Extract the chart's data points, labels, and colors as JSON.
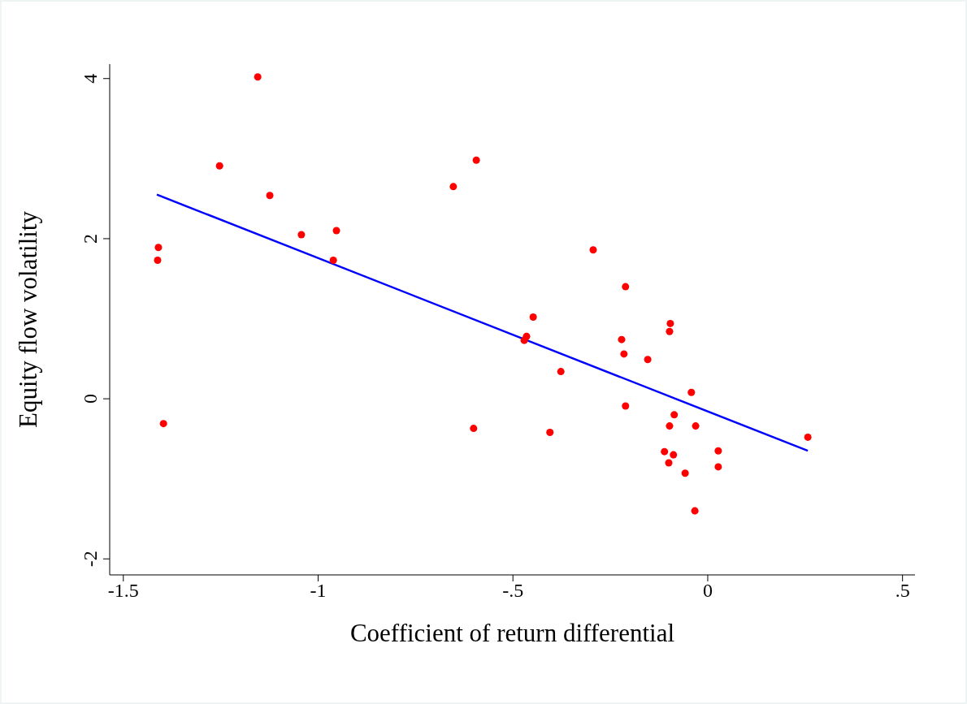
{
  "chart_data": {
    "type": "scatter",
    "xlabel": "Coefficient of return differential",
    "ylabel": "Equity flow volatility",
    "xlim": [
      -1.535,
      0.532
    ],
    "ylim": [
      -2.2,
      4.18
    ],
    "xticks": [
      {
        "value": -1.5,
        "label": "-1.5"
      },
      {
        "value": -1,
        "label": "-1"
      },
      {
        "value": -0.5,
        "label": "-.5"
      },
      {
        "value": 0,
        "label": "0"
      },
      {
        "value": 0.5,
        "label": ".5"
      }
    ],
    "yticks": [
      -2,
      0,
      2,
      4
    ],
    "marker": "circle",
    "series": [
      {
        "color": "#ff0000",
        "x": [
          -1.155,
          -1.253,
          -1.124,
          -1.41,
          -1.412,
          -1.397,
          -1.043,
          -0.953,
          -0.961,
          -0.653,
          -0.594,
          -0.601,
          -0.448,
          -0.465,
          -0.471,
          -0.377,
          -0.405,
          -0.294,
          -0.211,
          -0.221,
          -0.215,
          -0.211,
          -0.154,
          -0.096,
          -0.098,
          -0.042,
          -0.098,
          -0.086,
          -0.031,
          -0.111,
          -0.088,
          -0.1,
          -0.058,
          0.027,
          0.027,
          -0.033,
          0.257
        ],
        "values": [
          4.02,
          2.91,
          2.54,
          1.89,
          1.73,
          -0.31,
          2.05,
          2.1,
          1.73,
          2.65,
          2.98,
          -0.37,
          1.02,
          0.78,
          0.73,
          0.34,
          -0.42,
          1.86,
          1.4,
          0.74,
          0.56,
          -0.09,
          0.49,
          0.94,
          0.84,
          0.08,
          -0.34,
          -0.2,
          -0.34,
          -0.66,
          -0.7,
          -0.8,
          -0.93,
          -0.65,
          -0.85,
          -1.4,
          -0.48
        ]
      },
      {
        "type": "line",
        "marker": "none",
        "color": "#0000ff",
        "x": [
          -1.414,
          0.257
        ],
        "values": [
          2.55,
          -0.65
        ]
      }
    ]
  }
}
